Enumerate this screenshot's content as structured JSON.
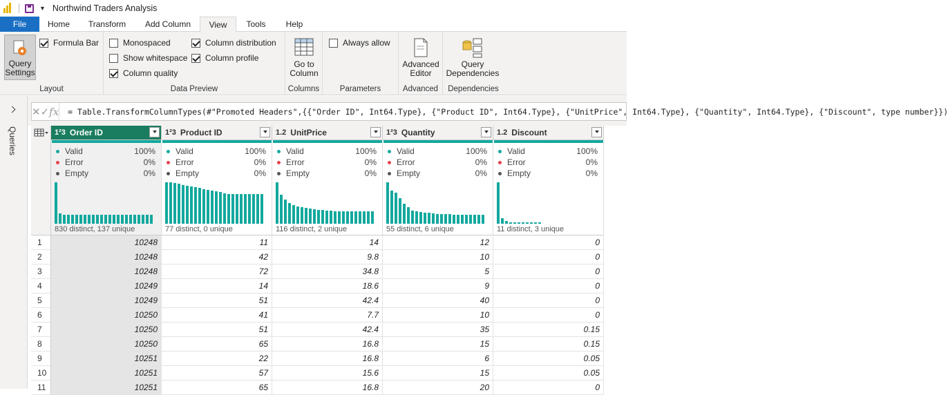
{
  "title": "Northwind Traders Analysis",
  "tabs": [
    "File",
    "Home",
    "Transform",
    "Add Column",
    "View",
    "Tools",
    "Help"
  ],
  "active_tab": "View",
  "ribbon": {
    "query_settings": [
      "Query",
      "Settings"
    ],
    "formula_bar": "Formula Bar",
    "layout_label": "Layout",
    "monospaced": "Monospaced",
    "show_whitespace": "Show whitespace",
    "column_quality": "Column quality",
    "column_distribution": "Column distribution",
    "column_profile": "Column profile",
    "data_preview_label": "Data Preview",
    "go_to_column": [
      "Go to",
      "Column"
    ],
    "columns_label": "Columns",
    "always_allow": "Always allow",
    "parameters_label": "Parameters",
    "advanced_editor": [
      "Advanced",
      "Editor"
    ],
    "advanced_label": "Advanced",
    "query_dependencies": [
      "Query",
      "Dependencies"
    ],
    "dependencies_label": "Dependencies",
    "checks": {
      "formula_bar": true,
      "monospaced": false,
      "show_whitespace": false,
      "column_quality": true,
      "column_distribution": true,
      "column_profile": true,
      "always_allow": false
    }
  },
  "sidebar": {
    "label": "Queries"
  },
  "formula": "= Table.TransformColumnTypes(#\"Promoted Headers\",{{\"Order ID\", Int64.Type}, {\"Product ID\", Int64.Type}, {\"UnitPrice\", Int64.Type}, {\"Quantity\", Int64.Type}, {\"Discount\", type number}})",
  "quality_labels": [
    "Valid",
    "Error",
    "Empty"
  ],
  "colors": {
    "valid": "#13a89e",
    "error": "#e8414d",
    "empty": "#555555",
    "accent": "#1a7d5f"
  },
  "columns": [
    {
      "type": "1²3",
      "name": "Order ID",
      "valid": "100%",
      "error": "0%",
      "empty": "0%",
      "distinct": "830 distinct, 137 unique",
      "hist": [
        100,
        25,
        22,
        22,
        22,
        22,
        22,
        22,
        22,
        22,
        22,
        22,
        22,
        22,
        22,
        22,
        22,
        22,
        22,
        22,
        22,
        22,
        22,
        22
      ]
    },
    {
      "type": "1²3",
      "name": "Product ID",
      "valid": "100%",
      "error": "0%",
      "empty": "0%",
      "distinct": "77 distinct, 0 unique",
      "hist": [
        100,
        100,
        98,
        96,
        94,
        92,
        90,
        88,
        86,
        84,
        82,
        80,
        78,
        76,
        74,
        72,
        72,
        72,
        72,
        72,
        72,
        72,
        72,
        72
      ]
    },
    {
      "type": "1.2",
      "name": "UnitPrice",
      "valid": "100%",
      "error": "0%",
      "empty": "0%",
      "distinct": "116 distinct, 2 unique",
      "hist": [
        100,
        70,
        58,
        50,
        45,
        42,
        40,
        38,
        36,
        35,
        34,
        33,
        32,
        31,
        30,
        30,
        30,
        30,
        30,
        30,
        30,
        30,
        30,
        30
      ]
    },
    {
      "type": "1²3",
      "name": "Quantity",
      "valid": "100%",
      "error": "0%",
      "empty": "0%",
      "distinct": "55 distinct, 6 unique",
      "hist": [
        100,
        80,
        75,
        62,
        48,
        40,
        32,
        30,
        28,
        27,
        26,
        25,
        24,
        24,
        23,
        23,
        22,
        22,
        22,
        22,
        22,
        22,
        22,
        22
      ]
    },
    {
      "type": "1.2",
      "name": "Discount",
      "valid": "100%",
      "error": "0%",
      "empty": "0%",
      "distinct": "11 distinct, 3 unique",
      "hist": [
        100,
        14,
        6,
        4,
        3,
        3,
        3,
        3,
        3,
        3,
        3
      ]
    }
  ],
  "rows": [
    [
      "1",
      "10248",
      "11",
      "14",
      "12",
      "0"
    ],
    [
      "2",
      "10248",
      "42",
      "9.8",
      "10",
      "0"
    ],
    [
      "3",
      "10248",
      "72",
      "34.8",
      "5",
      "0"
    ],
    [
      "4",
      "10249",
      "14",
      "18.6",
      "9",
      "0"
    ],
    [
      "5",
      "10249",
      "51",
      "42.4",
      "40",
      "0"
    ],
    [
      "6",
      "10250",
      "41",
      "7.7",
      "10",
      "0"
    ],
    [
      "7",
      "10250",
      "51",
      "42.4",
      "35",
      "0.15"
    ],
    [
      "8",
      "10250",
      "65",
      "16.8",
      "15",
      "0.15"
    ],
    [
      "9",
      "10251",
      "22",
      "16.8",
      "6",
      "0.05"
    ],
    [
      "10",
      "10251",
      "57",
      "15.6",
      "15",
      "0.05"
    ],
    [
      "11",
      "10251",
      "65",
      "16.8",
      "20",
      "0"
    ]
  ]
}
